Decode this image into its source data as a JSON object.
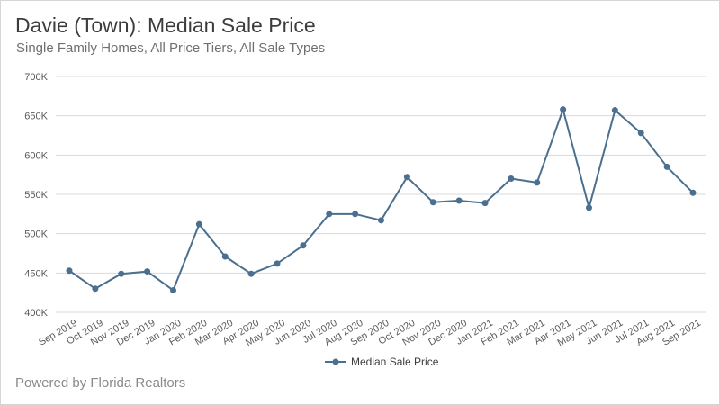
{
  "header": {
    "title": "Davie (Town): Median Sale Price",
    "subtitle": "Single Family Homes, All Price Tiers, All Sale Types"
  },
  "footer": {
    "text": "Powered by Florida Realtors"
  },
  "colors": {
    "series": "#4a6f8f",
    "grid": "#d9d9d9",
    "axis_text": "#5a5a5a"
  },
  "chart_data": {
    "type": "line",
    "title": "Davie (Town): Median Sale Price",
    "subtitle": "Single Family Homes, All Price Tiers, All Sale Types",
    "xlabel": "",
    "ylabel": "",
    "ylim": [
      400000,
      700000
    ],
    "yticks": [
      400000,
      450000,
      500000,
      550000,
      600000,
      650000,
      700000
    ],
    "ytick_labels": [
      "400K",
      "450K",
      "500K",
      "550K",
      "600K",
      "650K",
      "700K"
    ],
    "grid": true,
    "legend_position": "bottom",
    "categories": [
      "Sep 2019",
      "Oct 2019",
      "Nov 2019",
      "Dec 2019",
      "Jan 2020",
      "Feb 2020",
      "Mar 2020",
      "Apr 2020",
      "May 2020",
      "Jun 2020",
      "Jul 2020",
      "Aug 2020",
      "Sep 2020",
      "Oct 2020",
      "Nov 2020",
      "Dec 2020",
      "Jan 2021",
      "Feb 2021",
      "Mar 2021",
      "Apr 2021",
      "May 2021",
      "Jun 2021",
      "Jul 2021",
      "Aug 2021",
      "Sep 2021"
    ],
    "series": [
      {
        "name": "Median Sale Price",
        "values": [
          453000,
          430000,
          449000,
          452000,
          428000,
          512000,
          471000,
          449000,
          462000,
          485000,
          525000,
          525000,
          517000,
          572000,
          540000,
          542000,
          539000,
          570000,
          565000,
          658000,
          533000,
          657000,
          628000,
          585000,
          552000
        ]
      }
    ]
  }
}
